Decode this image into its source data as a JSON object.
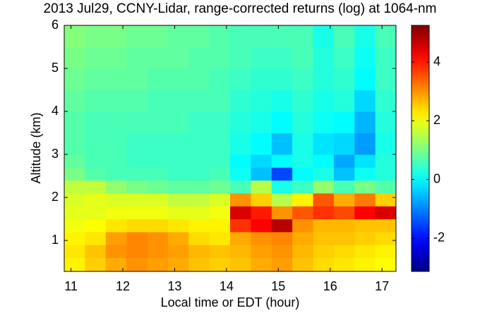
{
  "chart_data": {
    "type": "heatmap",
    "title": "2013 Jul29, CCNY-Lidar, range-corrected returns (log) at 1064-nm",
    "xlabel": "Local time or EDT (hour)",
    "ylabel": "Altitude (km)",
    "x_bins": [
      10.87,
      11.27,
      11.67,
      12.07,
      12.47,
      12.87,
      13.27,
      13.67,
      14.07,
      14.47,
      14.87,
      15.27,
      15.67,
      16.07,
      16.47,
      16.87,
      17.27
    ],
    "y_bins": [
      0.28,
      0.6,
      0.9,
      1.2,
      1.5,
      1.8,
      2.1,
      2.4,
      2.7,
      3.0,
      3.5,
      4.0,
      4.5,
      5.0,
      5.5,
      6.0
    ],
    "z": [
      [
        2.2,
        2.5,
        2.8,
        3.0,
        2.9,
        2.8,
        2.6,
        2.5,
        2.6,
        2.8,
        2.9,
        2.6,
        2.4,
        2.3,
        2.2,
        2.1
      ],
      [
        2.3,
        2.6,
        3.0,
        3.1,
        3.0,
        2.9,
        2.7,
        2.6,
        2.7,
        2.9,
        3.0,
        2.7,
        2.5,
        2.4,
        2.3,
        2.2
      ],
      [
        2.2,
        2.3,
        2.9,
        3.1,
        3.0,
        2.8,
        2.4,
        2.3,
        2.8,
        3.0,
        3.1,
        2.8,
        2.6,
        2.6,
        2.5,
        2.4
      ],
      [
        2.0,
        2.1,
        2.3,
        2.4,
        2.4,
        2.3,
        2.2,
        2.2,
        3.8,
        4.2,
        4.8,
        3.0,
        2.7,
        2.7,
        2.6,
        2.6
      ],
      [
        1.9,
        1.9,
        2.0,
        2.0,
        2.0,
        1.9,
        1.9,
        2.0,
        4.5,
        4.0,
        3.0,
        3.5,
        3.8,
        3.6,
        4.2,
        4.5
      ],
      [
        1.8,
        1.9,
        1.8,
        1.8,
        1.8,
        1.6,
        1.6,
        1.8,
        3.0,
        2.5,
        1.5,
        2.2,
        3.5,
        2.8,
        3.2,
        2.5
      ],
      [
        1.6,
        1.6,
        1.2,
        1.0,
        0.9,
        0.8,
        0.8,
        0.9,
        0.6,
        1.5,
        0.2,
        0.5,
        1.2,
        0.6,
        1.0,
        0.7
      ],
      [
        1.0,
        0.7,
        0.6,
        0.6,
        0.6,
        0.5,
        0.5,
        0.6,
        0.1,
        -0.5,
        -1.5,
        0.0,
        0.2,
        -0.5,
        0.1,
        0.3
      ],
      [
        0.8,
        0.6,
        0.6,
        0.5,
        0.5,
        0.5,
        0.5,
        0.5,
        0.0,
        -0.3,
        0.0,
        0.2,
        0.0,
        -0.7,
        -0.2,
        0.3
      ],
      [
        0.7,
        0.6,
        0.6,
        0.5,
        0.5,
        0.5,
        0.5,
        0.5,
        0.2,
        0.0,
        -0.5,
        0.2,
        -0.2,
        -0.3,
        -0.8,
        0.2
      ],
      [
        0.7,
        0.6,
        0.6,
        0.6,
        0.6,
        0.6,
        0.5,
        0.5,
        0.3,
        0.2,
        0.0,
        0.3,
        0.1,
        0.0,
        -0.6,
        0.3
      ],
      [
        0.8,
        0.7,
        0.7,
        0.7,
        0.6,
        0.6,
        0.6,
        0.6,
        0.4,
        0.3,
        0.2,
        0.4,
        0.2,
        0.3,
        -0.3,
        0.4
      ],
      [
        0.9,
        0.8,
        0.8,
        0.8,
        0.7,
        0.7,
        0.7,
        0.6,
        0.5,
        0.4,
        0.4,
        0.5,
        0.3,
        0.4,
        0.0,
        0.5
      ],
      [
        1.0,
        0.9,
        0.9,
        0.8,
        0.8,
        0.8,
        0.7,
        0.7,
        0.6,
        0.5,
        0.5,
        0.6,
        0.3,
        0.5,
        0.1,
        0.5
      ],
      [
        1.1,
        1.0,
        1.0,
        0.9,
        0.9,
        0.8,
        0.8,
        0.7,
        0.6,
        0.6,
        0.6,
        0.6,
        0.2,
        0.6,
        0.2,
        0.6
      ]
    ],
    "xlim": [
      10.87,
      17.27
    ],
    "xticks": [
      11,
      12,
      13,
      14,
      15,
      16,
      17
    ],
    "ylim": [
      0.28,
      6
    ],
    "yticks": [
      1,
      2,
      3,
      4,
      5,
      6
    ],
    "colormap": "jet",
    "clim": [
      -3.13,
      5.25
    ],
    "colorbar_ticks": [
      -2,
      0,
      2,
      4
    ]
  }
}
